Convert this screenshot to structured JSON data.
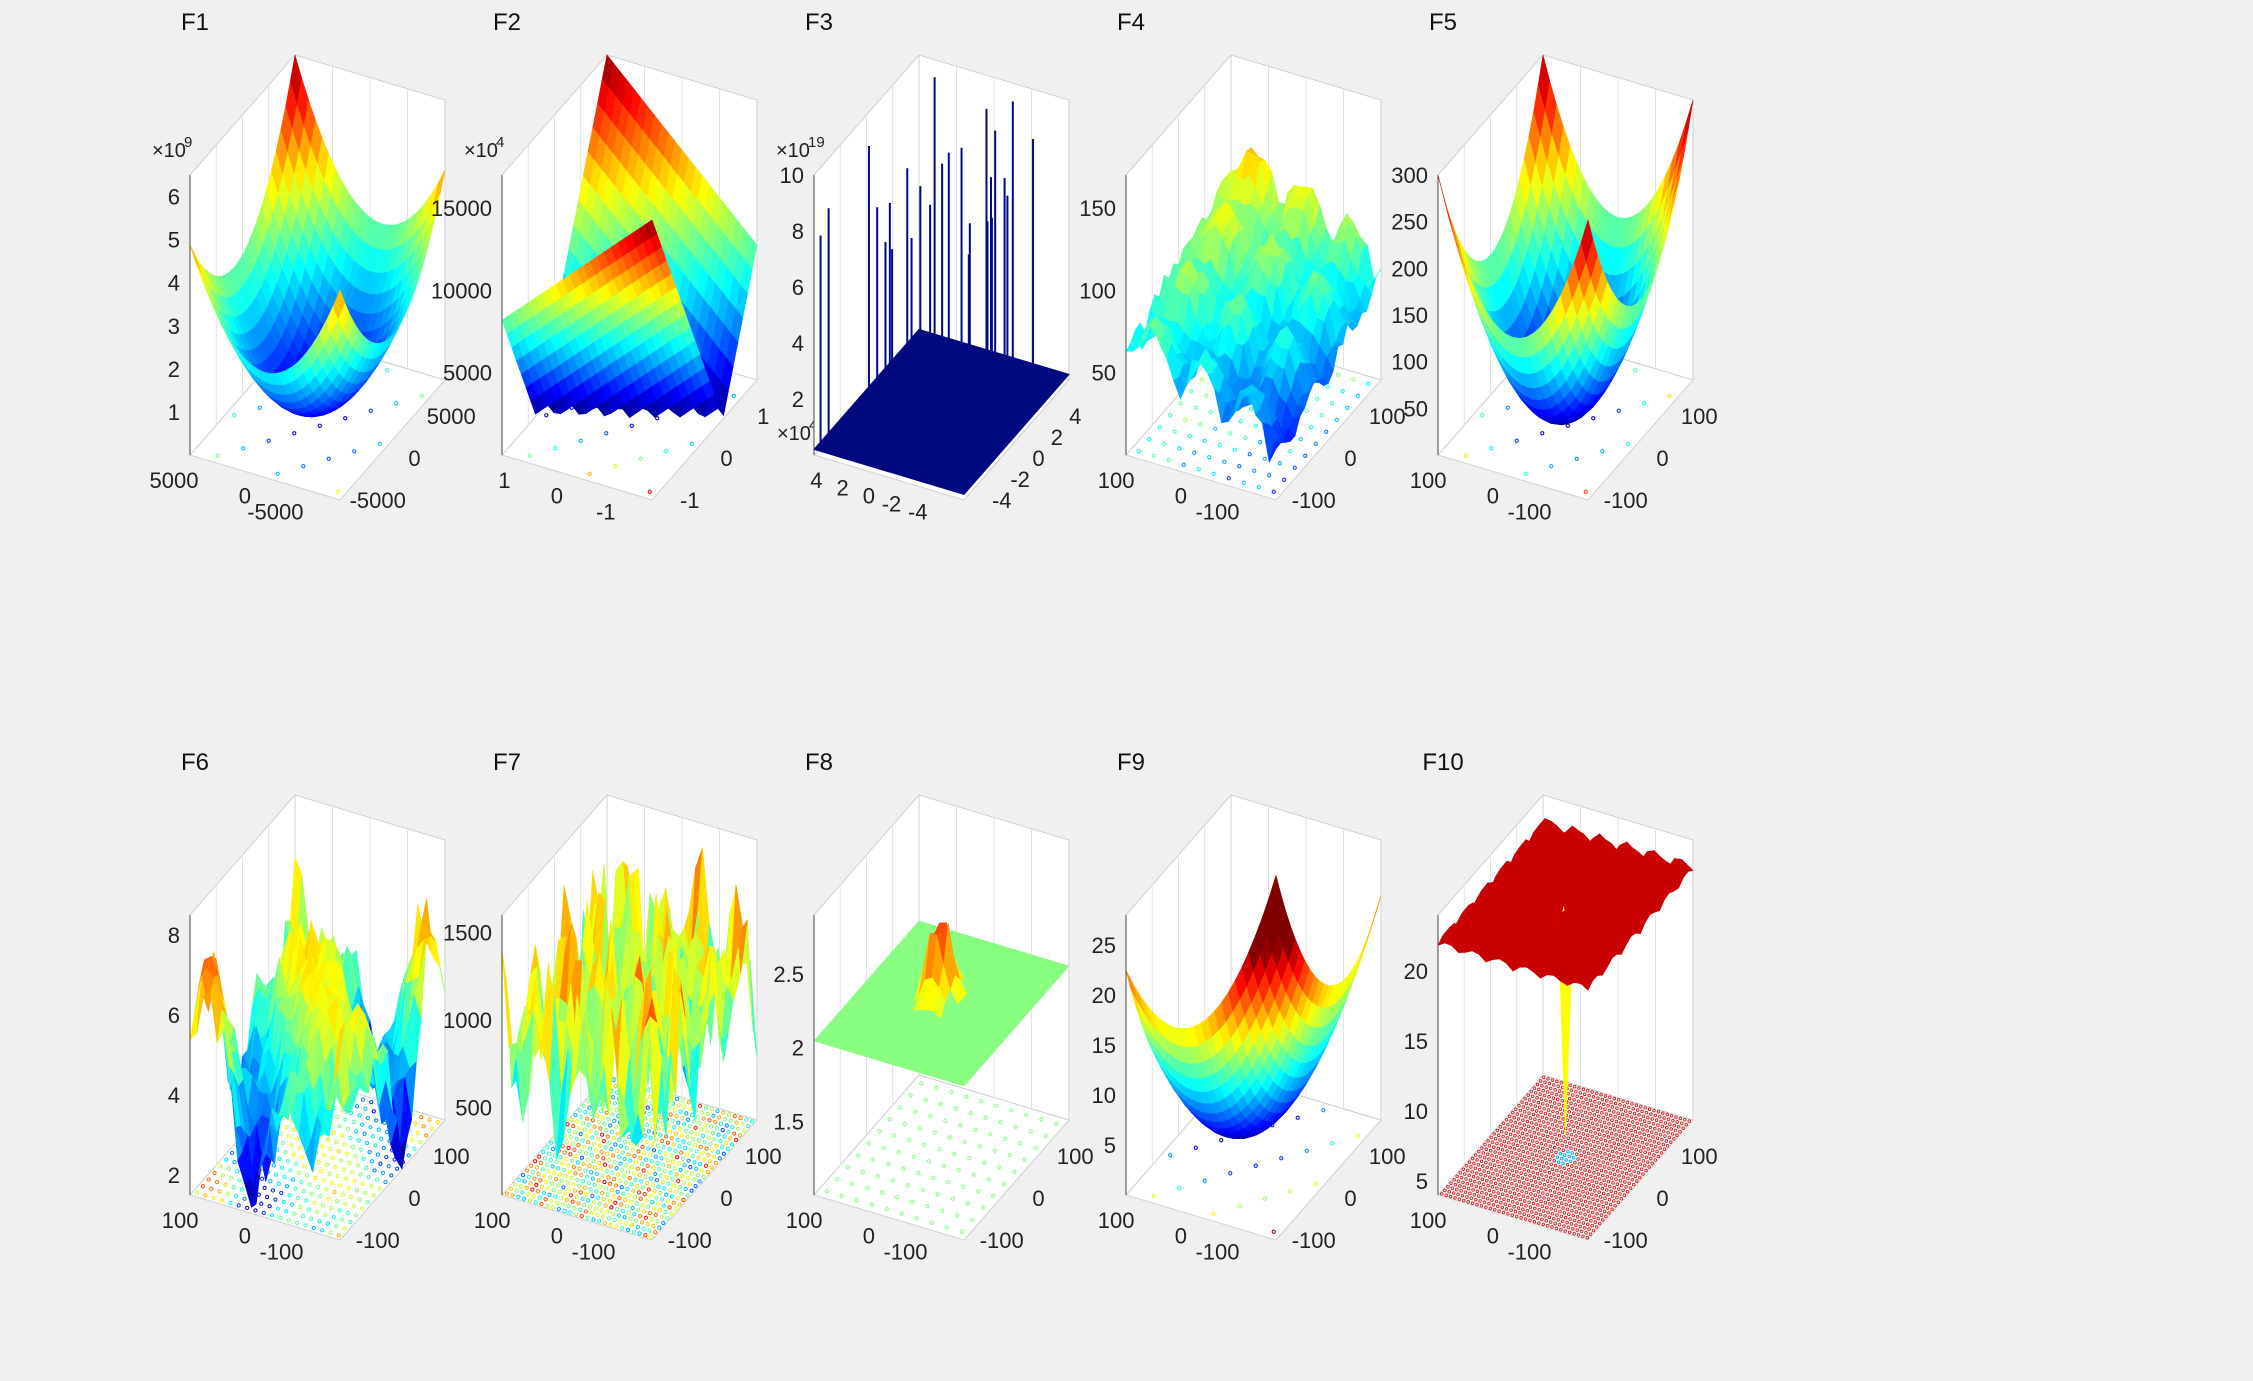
{
  "figure": {
    "background": "#f0f0f0",
    "panel_background": "#ffffff",
    "colormap": "jet"
  },
  "chart_data": [
    {
      "type": "surface",
      "title": "F1",
      "surface": "bowl_tilted",
      "contour": "arcs",
      "zlim": [
        0,
        6.5
      ],
      "zticks": [
        "1",
        "2",
        "3",
        "4",
        "5",
        "6"
      ],
      "exponent": "9",
      "xticks": [
        "-5000",
        "0",
        "5000"
      ],
      "yticks": [
        "-5000",
        "0",
        "5000"
      ]
    },
    {
      "type": "surface",
      "title": "F2",
      "surface": "vshape",
      "contour": "parallel",
      "zlim": [
        0,
        17000
      ],
      "zticks": [
        "5000",
        "10000",
        "15000"
      ],
      "exponent": "4",
      "exponent_x": "4",
      "xticks": [
        "-1",
        "0",
        "1"
      ],
      "yticks": [
        "-1",
        "0",
        "1"
      ]
    },
    {
      "type": "surface",
      "title": "F3",
      "surface": "spikes",
      "contour": "none",
      "zlim": [
        0,
        10
      ],
      "zticks": [
        "2",
        "4",
        "6",
        "8",
        "10"
      ],
      "exponent": "19",
      "xticks": [
        "-4",
        "-2",
        "0",
        "2",
        "4"
      ],
      "yticks": [
        "-4",
        "-2",
        "0",
        "2",
        "4"
      ]
    },
    {
      "type": "surface",
      "title": "F4",
      "surface": "rippled_plane",
      "contour": "rings",
      "zlim": [
        0,
        170
      ],
      "zticks": [
        "50",
        "100",
        "150"
      ],
      "xticks": [
        "-100",
        "0",
        "100"
      ],
      "yticks": [
        "-100",
        "0",
        "100"
      ]
    },
    {
      "type": "surface",
      "title": "F5",
      "surface": "bowl",
      "contour": "arcs",
      "zlim": [
        0,
        300
      ],
      "zticks": [
        "50",
        "100",
        "150",
        "200",
        "250",
        "300"
      ],
      "xticks": [
        "-100",
        "0",
        "100"
      ],
      "yticks": [
        "-100",
        "0",
        "100"
      ]
    },
    {
      "type": "surface",
      "title": "F6",
      "surface": "noisy_hills",
      "contour": "noise",
      "zlim": [
        1.5,
        8.5
      ],
      "zticks": [
        "2",
        "4",
        "6",
        "8"
      ],
      "xticks": [
        "-100",
        "0",
        "100"
      ],
      "yticks": [
        "-100",
        "0",
        "100"
      ]
    },
    {
      "type": "surface",
      "title": "F7",
      "surface": "noisy_spikes",
      "contour": "rings_dense",
      "zlim": [
        0,
        1600
      ],
      "zticks": [
        "500",
        "1000",
        "1500"
      ],
      "xticks": [
        "-100",
        "0",
        "100"
      ],
      "yticks": [
        "-100",
        "0",
        "100"
      ]
    },
    {
      "type": "surface",
      "title": "F8",
      "surface": "flat_peak",
      "contour": "flat",
      "zlim": [
        1,
        2.9
      ],
      "zticks": [
        "1.5",
        "2",
        "2.5"
      ],
      "xticks": [
        "-100",
        "0",
        "100"
      ],
      "yticks": [
        "-100",
        "0",
        "100"
      ]
    },
    {
      "type": "surface",
      "title": "F9",
      "surface": "bowl_shifted",
      "contour": "arcs",
      "zlim": [
        0,
        28
      ],
      "zticks": [
        "5",
        "10",
        "15",
        "20",
        "25"
      ],
      "xticks": [
        "-100",
        "0",
        "100"
      ],
      "yticks": [
        "-100",
        "0",
        "100"
      ]
    },
    {
      "type": "surface",
      "title": "F10",
      "surface": "ackley",
      "contour": "dots",
      "zlim": [
        4,
        24
      ],
      "zticks": [
        "5",
        "10",
        "15",
        "20"
      ],
      "xticks": [
        "-100",
        "0",
        "100"
      ],
      "yticks": [
        "-100",
        "0",
        "100"
      ]
    }
  ]
}
